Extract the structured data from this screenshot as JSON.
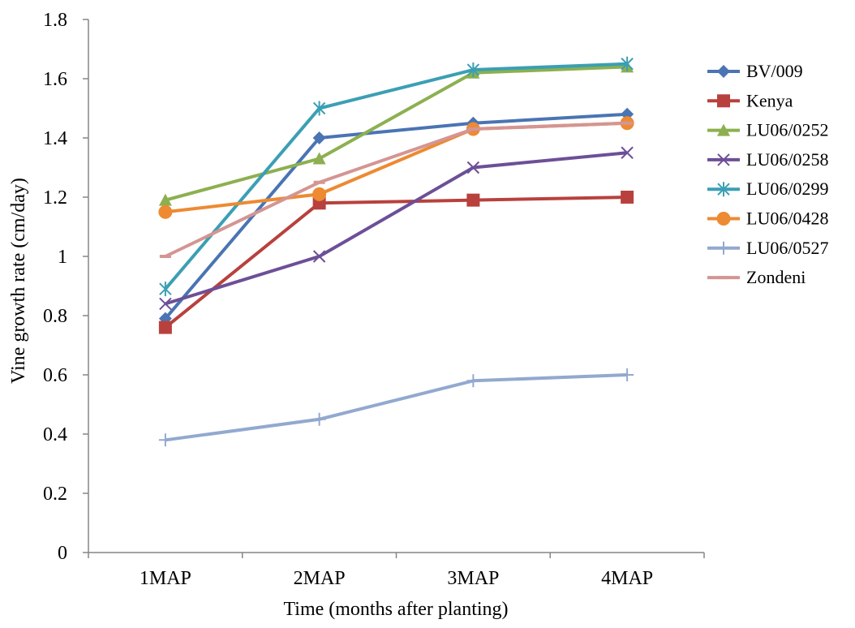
{
  "chart_data": {
    "type": "line",
    "title": "",
    "xlabel": "Time (months after planting)",
    "ylabel": "Vine growth rate (cm/day)",
    "categories": [
      "1MAP",
      "2MAP",
      "3MAP",
      "4MAP"
    ],
    "ylim": [
      0,
      1.8
    ],
    "yticks": [
      0,
      0.2,
      0.4,
      0.6,
      0.8,
      1,
      1.2,
      1.4,
      1.6,
      1.8
    ],
    "ytick_labels": [
      "0",
      "0.2",
      "0.4",
      "0.6",
      "0.8",
      "1",
      "1.2",
      "1.4",
      "1.6",
      "1.8"
    ],
    "grid": false,
    "legend_position": "right",
    "series": [
      {
        "name": "BV/009",
        "values": [
          0.79,
          1.4,
          1.45,
          1.48
        ],
        "color": "#4a74b3",
        "marker": "diamond"
      },
      {
        "name": "Kenya",
        "values": [
          0.76,
          1.18,
          1.19,
          1.2
        ],
        "color": "#b8413d",
        "marker": "square"
      },
      {
        "name": "LU06/0252",
        "values": [
          1.19,
          1.33,
          1.62,
          1.64
        ],
        "color": "#8cb04f",
        "marker": "triangle"
      },
      {
        "name": "LU06/0258",
        "values": [
          0.84,
          1.0,
          1.3,
          1.35
        ],
        "color": "#6d4f97",
        "marker": "x"
      },
      {
        "name": "LU06/0299",
        "values": [
          0.89,
          1.5,
          1.63,
          1.65
        ],
        "color": "#3b9fb4",
        "marker": "asterisk"
      },
      {
        "name": "LU06/0428",
        "values": [
          1.15,
          1.21,
          1.43,
          1.45
        ],
        "color": "#ed8a32",
        "marker": "circle"
      },
      {
        "name": "LU06/0527",
        "values": [
          0.38,
          0.45,
          0.58,
          0.6
        ],
        "color": "#92a9cf",
        "marker": "plus"
      },
      {
        "name": "Zondeni",
        "values": [
          1.0,
          1.25,
          1.43,
          1.45
        ],
        "color": "#d49593",
        "marker": "dash"
      }
    ]
  }
}
